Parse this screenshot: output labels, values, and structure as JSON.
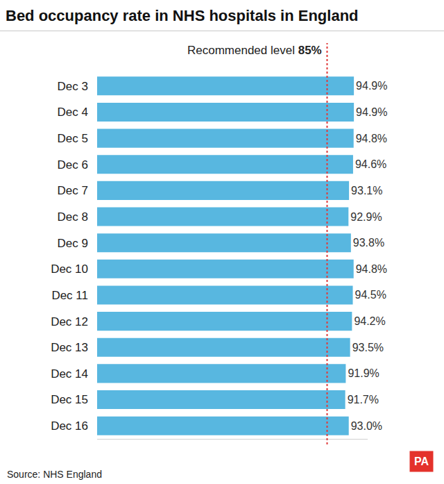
{
  "chart_data": {
    "type": "bar",
    "title": "Bed occupancy rate in NHS hospitals in England",
    "orientation": "horizontal",
    "categories": [
      "Dec 3",
      "Dec 4",
      "Dec 5",
      "Dec 6",
      "Dec 7",
      "Dec 8",
      "Dec 9",
      "Dec 10",
      "Dec 11",
      "Dec 12",
      "Dec 13",
      "Dec 14",
      "Dec 15",
      "Dec 16"
    ],
    "values": [
      94.9,
      94.9,
      94.8,
      94.6,
      93.1,
      92.9,
      93.8,
      94.8,
      94.5,
      94.2,
      93.5,
      91.9,
      91.7,
      93.0
    ],
    "value_labels": [
      "94.9%",
      "94.9%",
      "94.8%",
      "94.6%",
      "93.1%",
      "92.9%",
      "93.8%",
      "94.8%",
      "94.5%",
      "94.2%",
      "93.5%",
      "91.9%",
      "91.7%",
      "93.0%"
    ],
    "data_labels": true,
    "color": "#58b7e0",
    "xlim": [
      0,
      100
    ],
    "xticks": [],
    "tick_labels": "y",
    "grid": false,
    "reference_line": {
      "value": 85,
      "label": "Recommended level 85%",
      "color": "#e03a3a",
      "line_style": "dashed"
    },
    "source": "Source: NHS England",
    "logo": {
      "text": "PA",
      "color": "#e4322b"
    }
  }
}
